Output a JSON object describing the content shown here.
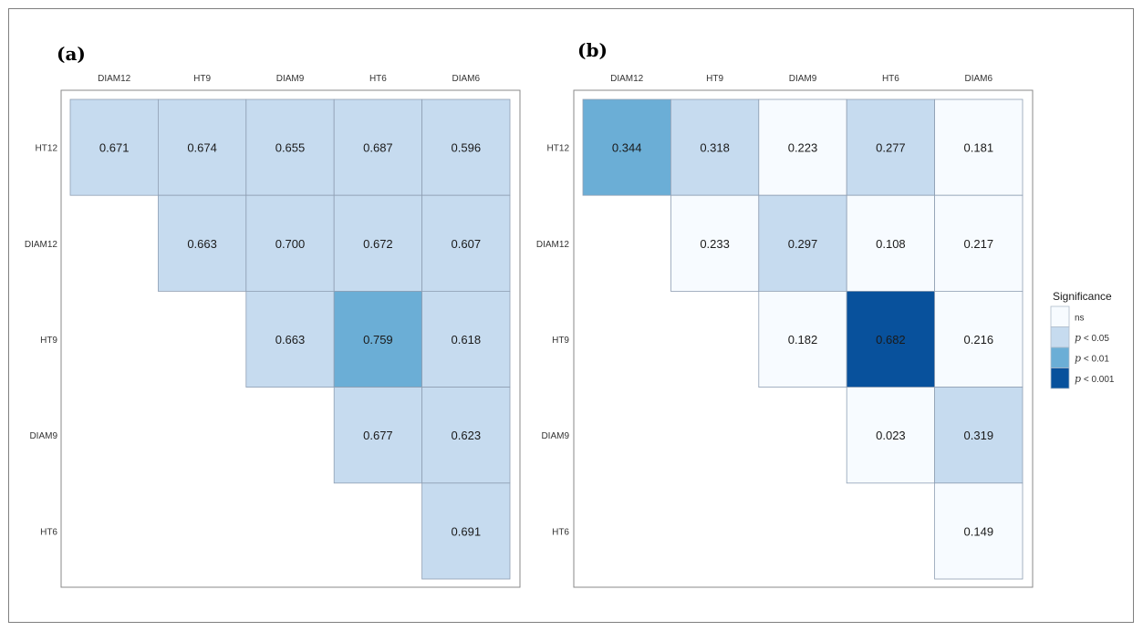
{
  "chart_data": [
    {
      "type": "heatmap",
      "panel_label": "(a)",
      "columns": [
        "DIAM12",
        "HT9",
        "DIAM9",
        "HT6",
        "DIAM6"
      ],
      "rows": [
        "HT12",
        "DIAM12",
        "HT9",
        "DIAM9",
        "HT6"
      ],
      "cells": [
        [
          "0.671",
          "0.674",
          "0.655",
          "0.687",
          "0.596"
        ],
        [
          null,
          "0.663",
          "0.700",
          "0.672",
          "0.607"
        ],
        [
          null,
          null,
          "0.663",
          "0.759",
          "0.618"
        ],
        [
          null,
          null,
          null,
          "0.677",
          "0.623"
        ],
        [
          null,
          null,
          null,
          null,
          "0.691"
        ]
      ],
      "significance": [
        [
          "p<0.05",
          "p<0.05",
          "p<0.05",
          "p<0.05",
          "p<0.05"
        ],
        [
          null,
          "p<0.05",
          "p<0.05",
          "p<0.05",
          "p<0.05"
        ],
        [
          null,
          null,
          "p<0.05",
          "p<0.01",
          "p<0.05"
        ],
        [
          null,
          null,
          null,
          "p<0.05",
          "p<0.05"
        ],
        [
          null,
          null,
          null,
          null,
          "p<0.05"
        ]
      ]
    },
    {
      "type": "heatmap",
      "panel_label": "(b)",
      "columns": [
        "DIAM12",
        "HT9",
        "DIAM9",
        "HT6",
        "DIAM6"
      ],
      "rows": [
        "HT12",
        "DIAM12",
        "HT9",
        "DIAM9",
        "HT6"
      ],
      "cells": [
        [
          "0.344",
          "0.318",
          "0.223",
          "0.277",
          "0.181"
        ],
        [
          null,
          "0.233",
          "0.297",
          "0.108",
          "0.217"
        ],
        [
          null,
          null,
          "0.182",
          "0.682",
          "0.216"
        ],
        [
          null,
          null,
          null,
          "0.023",
          "0.319"
        ],
        [
          null,
          null,
          null,
          null,
          "0.149"
        ]
      ],
      "significance": [
        [
          "p<0.01",
          "p<0.05",
          "ns",
          "p<0.05",
          "ns"
        ],
        [
          null,
          "ns",
          "p<0.05",
          "ns",
          "ns"
        ],
        [
          null,
          null,
          "ns",
          "p<0.001",
          "ns"
        ],
        [
          null,
          null,
          null,
          "ns",
          "p<0.05"
        ],
        [
          null,
          null,
          null,
          null,
          "ns"
        ]
      ]
    }
  ],
  "legend": {
    "title": "Significance",
    "items": [
      {
        "key": "ns",
        "prefix": "",
        "label": "ns",
        "color": "#f7fbff"
      },
      {
        "key": "p<0.05",
        "prefix": "p",
        "label": " < 0.05",
        "color": "#c6dbef"
      },
      {
        "key": "p<0.01",
        "prefix": "p",
        "label": " < 0.01",
        "color": "#6baed6"
      },
      {
        "key": "p<0.001",
        "prefix": "p",
        "label": " < 0.001",
        "color": "#08519c"
      }
    ]
  }
}
